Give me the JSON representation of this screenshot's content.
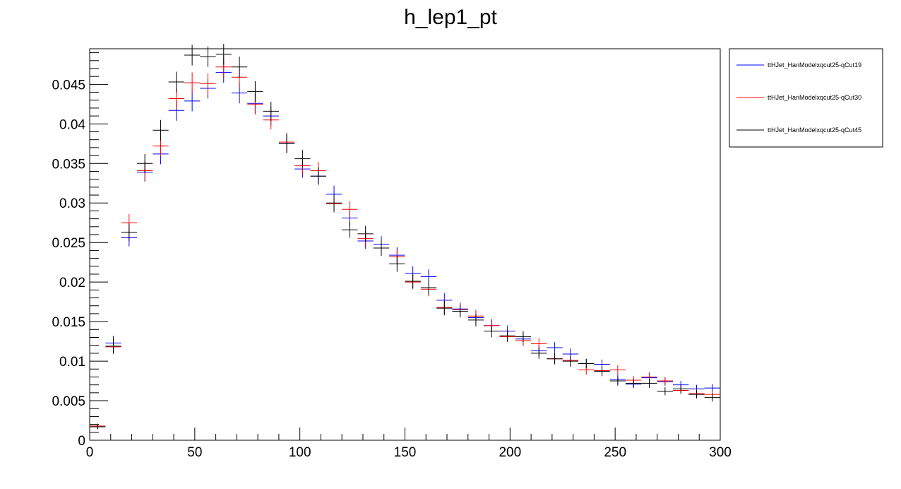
{
  "chart_data": {
    "type": "scatter",
    "title": "h_lep1_pt",
    "xlabel": "",
    "ylabel": "",
    "xlim": [
      0,
      300
    ],
    "ylim": [
      0,
      0.0495
    ],
    "x_ticks": [
      "0",
      "50",
      "100",
      "150",
      "200",
      "250",
      "300"
    ],
    "y_ticks": [
      "0",
      "0.005",
      "0.01",
      "0.015",
      "0.02",
      "0.025",
      "0.03",
      "0.035",
      "0.04",
      "0.045"
    ],
    "bin_width": 7.5,
    "x": [
      3.75,
      11.25,
      18.75,
      26.25,
      33.75,
      41.25,
      48.75,
      56.25,
      63.75,
      71.25,
      78.75,
      86.25,
      93.75,
      101.25,
      108.75,
      116.25,
      123.75,
      131.25,
      138.75,
      146.25,
      153.75,
      161.25,
      168.75,
      176.25,
      183.75,
      191.25,
      198.75,
      206.25,
      213.75,
      221.25,
      228.75,
      236.25,
      243.75,
      251.25,
      258.75,
      266.25,
      273.75,
      281.25,
      288.75,
      296.25
    ],
    "series": [
      {
        "name": "ttHJet_HanModelxqcut25-qCut19",
        "color": "#0000ff",
        "values": [
          0.0017,
          0.0123,
          0.0256,
          0.0339,
          0.0362,
          0.0417,
          0.0429,
          0.0445,
          0.0465,
          0.0439,
          0.0426,
          0.041,
          0.0375,
          0.0343,
          0.0334,
          0.0311,
          0.0281,
          0.0252,
          0.0248,
          0.0234,
          0.0211,
          0.0207,
          0.0177,
          0.0166,
          0.0155,
          0.0145,
          0.0138,
          0.0128,
          0.0113,
          0.0117,
          0.0109,
          0.0097,
          0.0096,
          0.0077,
          0.0071,
          0.0079,
          0.0074,
          0.007,
          0.0065,
          0.0066
        ],
        "errors": [
          0.0003,
          0.0009,
          0.0011,
          0.0012,
          0.0013,
          0.0013,
          0.0013,
          0.0013,
          0.0013,
          0.0013,
          0.0013,
          0.0012,
          0.0012,
          0.0011,
          0.0011,
          0.0011,
          0.001,
          0.001,
          0.001,
          0.001,
          0.0009,
          0.0009,
          0.0009,
          0.0008,
          0.0008,
          0.0008,
          0.0007,
          0.0007,
          0.0007,
          0.0007,
          0.0007,
          0.0006,
          0.0006,
          0.0006,
          0.0005,
          0.0006,
          0.0005,
          0.0005,
          0.0005,
          0.0005
        ]
      },
      {
        "name": "ttHJet_HanModelxqcut25-qCut30",
        "color": "#ff0000",
        "values": [
          0.0018,
          0.0118,
          0.0275,
          0.0341,
          0.0372,
          0.0432,
          0.0452,
          0.0451,
          0.0472,
          0.0459,
          0.0425,
          0.0405,
          0.0377,
          0.0347,
          0.0341,
          0.0299,
          0.0292,
          0.0255,
          0.0243,
          0.0232,
          0.02,
          0.0191,
          0.0168,
          0.0165,
          0.0157,
          0.0145,
          0.0131,
          0.0126,
          0.0122,
          0.0103,
          0.0101,
          0.0089,
          0.0088,
          0.0089,
          0.0076,
          0.008,
          0.0075,
          0.0063,
          0.0059,
          0.0058
        ],
        "errors": [
          0.0003,
          0.0009,
          0.0011,
          0.0012,
          0.0013,
          0.0013,
          0.0013,
          0.0013,
          0.0013,
          0.0013,
          0.0013,
          0.0012,
          0.0012,
          0.0011,
          0.0011,
          0.0011,
          0.001,
          0.001,
          0.001,
          0.001,
          0.0009,
          0.0009,
          0.0009,
          0.0008,
          0.0008,
          0.0008,
          0.0007,
          0.0007,
          0.0007,
          0.0007,
          0.0007,
          0.0006,
          0.0006,
          0.0006,
          0.0005,
          0.0006,
          0.0005,
          0.0005,
          0.0005,
          0.0005
        ]
      },
      {
        "name": "ttHJet_HanModelxqcut25-qCut45",
        "color": "#000000",
        "values": [
          0.0017,
          0.0119,
          0.0263,
          0.035,
          0.0392,
          0.0453,
          0.0487,
          0.0485,
          0.0488,
          0.0472,
          0.0441,
          0.0416,
          0.0375,
          0.0356,
          0.0334,
          0.03,
          0.0266,
          0.0261,
          0.0243,
          0.0223,
          0.0201,
          0.0193,
          0.0167,
          0.0163,
          0.0152,
          0.0138,
          0.0132,
          0.0131,
          0.011,
          0.0103,
          0.01,
          0.0097,
          0.0087,
          0.0075,
          0.0072,
          0.0072,
          0.0062,
          0.0065,
          0.0058,
          0.0054
        ],
        "errors": [
          0.0003,
          0.0009,
          0.0011,
          0.0012,
          0.0013,
          0.0013,
          0.0013,
          0.0013,
          0.0013,
          0.0013,
          0.0013,
          0.0012,
          0.0012,
          0.0011,
          0.0011,
          0.0011,
          0.001,
          0.001,
          0.001,
          0.001,
          0.0009,
          0.0009,
          0.0009,
          0.0008,
          0.0008,
          0.0008,
          0.0007,
          0.0007,
          0.0007,
          0.0007,
          0.0007,
          0.0006,
          0.0006,
          0.0006,
          0.0005,
          0.0006,
          0.0005,
          0.0005,
          0.0005,
          0.0005
        ]
      }
    ],
    "grid": false,
    "legend_position": "right"
  }
}
